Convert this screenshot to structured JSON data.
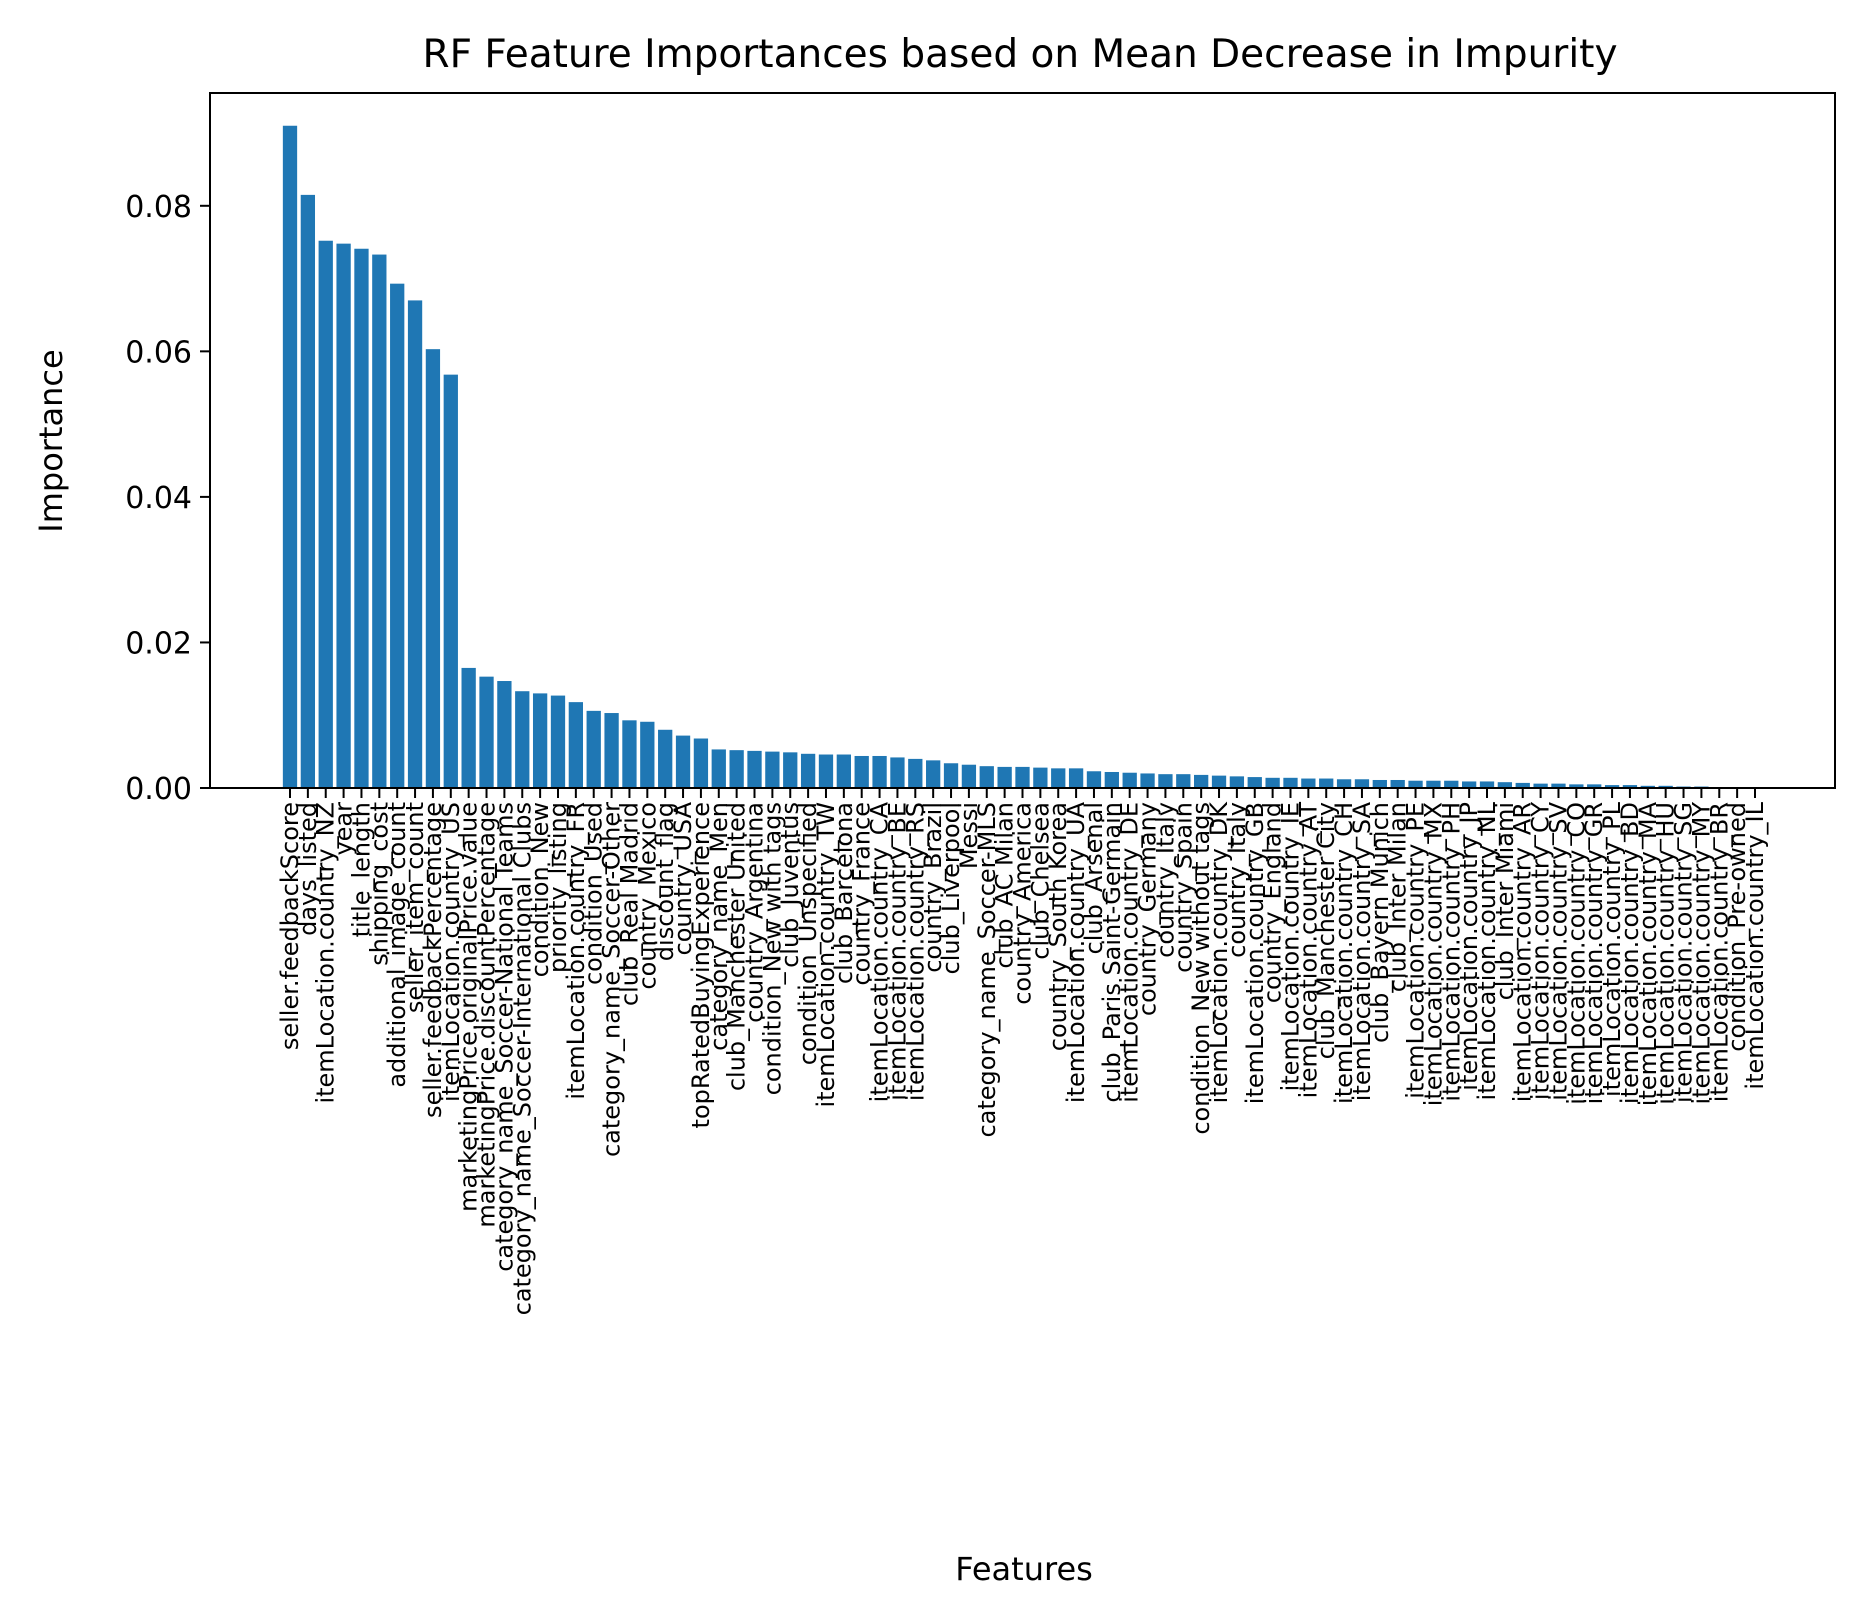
{
  "chart_data": {
    "type": "bar",
    "title": "RF Feature Importances based on Mean Decrease in Impurity",
    "xlabel": "Features",
    "ylabel": "Importance",
    "ylim": [
      0,
      0.0955
    ],
    "yticks": [
      0.0,
      0.02,
      0.04,
      0.06,
      0.08
    ],
    "ytick_labels": [
      "0.00",
      "0.02",
      "0.04",
      "0.06",
      "0.08"
    ],
    "grid": false,
    "legend": "none",
    "bar_color": "#1f77b4",
    "categories": [
      "seller.feedbackScore",
      "days_listed",
      "itemLocation.country_NZ",
      "year",
      "title_length",
      "shipping_cost",
      "additional_image_count",
      "seller_item_count",
      "seller.feedbackPercentage",
      "itemLocation.country_US",
      "marketingPrice.originalPrice.value",
      "marketingPrice.discountPercentage",
      "category_name_Soccer-National Teams",
      "category_name_Soccer-International Clubs",
      "condition_New",
      "priority_listing",
      "itemLocation.country_FR",
      "condition_Used",
      "category_name_Soccer-Other",
      "club_Real Madrid",
      "country_Mexico",
      "discount_flag",
      "country_USA",
      "topRatedBuyingExperience",
      "category_name_Men",
      "club_Manchester United",
      "country_Argentina",
      "condition_New with tags",
      "club_Juventus",
      "condition_Unspecified",
      "itemLocation.country_TW",
      "club_Barcelona",
      "country_France",
      "itemLocation.country_CA",
      "itemLocation.country_BE",
      "itemLocation.country_RS",
      "country_Brazil",
      "club_Liverpool",
      "Messi",
      "category_name_Soccer-MLS",
      "club_AC Milan",
      "country_America",
      "club_Chelsea",
      "country_South Korea",
      "itemLocation.country_UA",
      "club_Arsenal",
      "club_Paris Saint-Germain",
      "itemLocation.country_DE",
      "country_Germany",
      "country_Italy",
      "country_Spain",
      "condition_New without tags",
      "itemLocation.country_DK",
      "country_Italy",
      "itemLocation.country_GB",
      "country_England",
      "itemLocation.country_IE",
      "itemLocation.country_AT",
      "club_Manchester City",
      "itemLocation.country_CH",
      "itemLocation.country_SA",
      "club_Bayern Munich",
      "club_Inter Milan",
      "itemLocation.country_PE",
      "itemLocation.country_MX",
      "itemLocation.country_PH",
      "itemLocation.country_JP",
      "itemLocation.country_NL",
      "club_Inter Miami",
      "itemLocation.country_AR",
      "itemLocation.country_CY",
      "itemLocation.country_SV",
      "itemLocation.country_CO",
      "itemLocation.country_GR",
      "itemLocation.country_PL",
      "itemLocation.country_BD",
      "itemLocation.country_MA",
      "itemLocation.country_HU",
      "itemLocation.country_SG",
      "itemLocation.country_MY",
      "itemLocation.country_BR",
      "condition_Pre-owned",
      "itemLocation.country_IL"
    ],
    "values": [
      0.091,
      0.0815,
      0.0752,
      0.0748,
      0.0741,
      0.0733,
      0.0693,
      0.067,
      0.0603,
      0.0568,
      0.0165,
      0.0153,
      0.0147,
      0.0133,
      0.013,
      0.0127,
      0.0118,
      0.0106,
      0.0103,
      0.0093,
      0.0091,
      0.008,
      0.0072,
      0.0068,
      0.0053,
      0.0052,
      0.0051,
      0.005,
      0.0049,
      0.0047,
      0.0046,
      0.0046,
      0.0044,
      0.0044,
      0.0042,
      0.004,
      0.0038,
      0.0034,
      0.0032,
      0.003,
      0.0029,
      0.0029,
      0.0028,
      0.0027,
      0.0027,
      0.0023,
      0.0022,
      0.0021,
      0.002,
      0.0019,
      0.0019,
      0.0018,
      0.0017,
      0.0016,
      0.0015,
      0.0014,
      0.0014,
      0.0013,
      0.0013,
      0.0012,
      0.0012,
      0.0011,
      0.0011,
      0.001,
      0.001,
      0.001,
      0.0009,
      0.0009,
      0.0008,
      0.0007,
      0.0006,
      0.0006,
      0.0005,
      0.0005,
      0.0004,
      0.0004,
      0.0003,
      0.0003,
      0.0002,
      0.0002,
      0.0001,
      0.0001,
      0.0001
    ]
  }
}
